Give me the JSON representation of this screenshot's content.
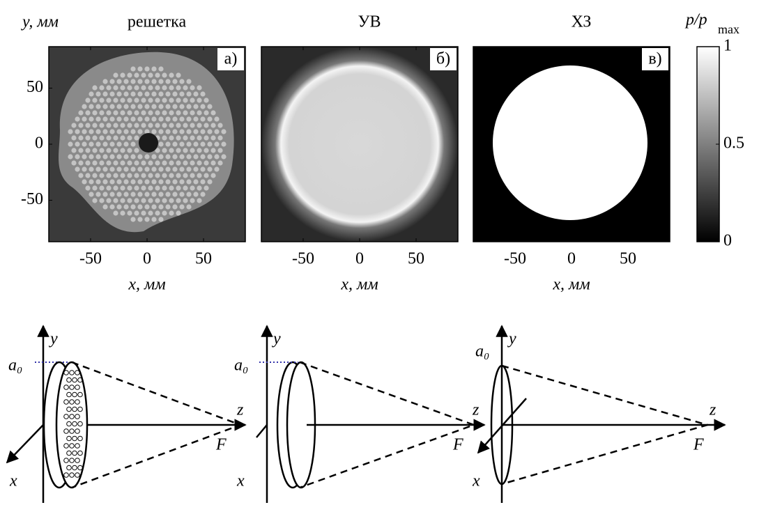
{
  "chart_data": [
    {
      "type": "image",
      "title": "решетка",
      "panel_label": "а)",
      "y_label": "y, мм",
      "x_label": "x, мм",
      "xlim": [
        -87,
        87
      ],
      "ylim": [
        -87,
        87
      ],
      "xticks": [
        -50,
        0,
        50
      ],
      "yticks": [
        -50,
        0,
        50
      ],
      "colormap": "gray"
    },
    {
      "type": "image",
      "title": "УВ",
      "panel_label": "б)",
      "x_label": "x, мм",
      "xlim": [
        -87,
        87
      ],
      "ylim": [
        -87,
        87
      ],
      "xticks": [
        -50,
        0,
        50
      ],
      "colormap": "gray"
    },
    {
      "type": "image",
      "title": "ХЗ",
      "panel_label": "в)",
      "x_label": "x, мм",
      "xlim": [
        -87,
        87
      ],
      "ylim": [
        -87,
        87
      ],
      "xticks": [
        -50,
        0,
        50
      ],
      "colormap": "gray"
    }
  ],
  "colorbar": {
    "label": "p/p",
    "label_sub": "max",
    "lim": [
      0,
      1
    ],
    "ticks": [
      0,
      0.5,
      1
    ]
  },
  "diagrams": [
    {
      "y": "y",
      "a0": "a₀",
      "z": "z",
      "F": "F",
      "x": "x"
    },
    {
      "y": "y",
      "a0": "a₀",
      "z": "z",
      "F": "F",
      "x": "x"
    },
    {
      "y": "y",
      "a0": "a₀",
      "z": "z",
      "F": "F",
      "x": "x"
    }
  ]
}
